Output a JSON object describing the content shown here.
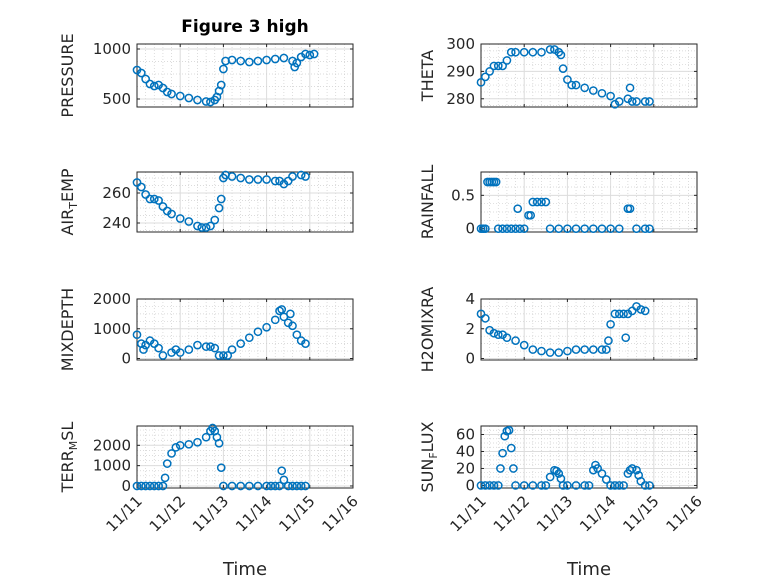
{
  "figure": {
    "title": "Figure 3 high",
    "marker_color": "#0072BD"
  },
  "chart_data": [
    {
      "type": "scatter",
      "ylabel": "PRESSURE",
      "x_tick_labels": [
        "11/11",
        "11/12",
        "11/13",
        "11/14",
        "11/15",
        "11/16"
      ],
      "xlim": [
        0,
        5
      ],
      "ylim": [
        420,
        1050
      ],
      "y_ticks": [
        500,
        1000
      ],
      "y_tick_labels": [
        "500",
        "1000"
      ],
      "grid": true,
      "points": [
        [
          0,
          790
        ],
        [
          0.1,
          760
        ],
        [
          0.2,
          700
        ],
        [
          0.3,
          650
        ],
        [
          0.4,
          630
        ],
        [
          0.5,
          640
        ],
        [
          0.6,
          610
        ],
        [
          0.7,
          570
        ],
        [
          0.8,
          550
        ],
        [
          1.0,
          530
        ],
        [
          1.2,
          510
        ],
        [
          1.4,
          490
        ],
        [
          1.6,
          475
        ],
        [
          1.7,
          470
        ],
        [
          1.8,
          490
        ],
        [
          1.85,
          520
        ],
        [
          1.9,
          580
        ],
        [
          1.95,
          640
        ],
        [
          2.0,
          800
        ],
        [
          2.05,
          880
        ],
        [
          2.2,
          890
        ],
        [
          2.4,
          880
        ],
        [
          2.6,
          870
        ],
        [
          2.8,
          880
        ],
        [
          3.0,
          890
        ],
        [
          3.2,
          900
        ],
        [
          3.4,
          910
        ],
        [
          3.6,
          880
        ],
        [
          3.65,
          820
        ],
        [
          3.7,
          860
        ],
        [
          3.8,
          920
        ],
        [
          3.9,
          950
        ],
        [
          4.0,
          940
        ],
        [
          4.1,
          950
        ]
      ]
    },
    {
      "type": "scatter",
      "ylabel": "THETA",
      "x_tick_labels": [
        "11/11",
        "11/12",
        "11/13",
        "11/14",
        "11/15",
        "11/16"
      ],
      "xlim": [
        0,
        5
      ],
      "ylim": [
        277,
        300
      ],
      "y_ticks": [
        280,
        290,
        300
      ],
      "y_tick_labels": [
        "280",
        "290",
        "300"
      ],
      "grid": true,
      "points": [
        [
          0,
          286
        ],
        [
          0.1,
          288
        ],
        [
          0.2,
          290
        ],
        [
          0.3,
          292
        ],
        [
          0.4,
          292
        ],
        [
          0.5,
          292
        ],
        [
          0.6,
          294
        ],
        [
          0.7,
          297
        ],
        [
          0.8,
          297
        ],
        [
          1.0,
          297
        ],
        [
          1.2,
          297
        ],
        [
          1.4,
          297
        ],
        [
          1.6,
          298
        ],
        [
          1.7,
          298
        ],
        [
          1.8,
          297
        ],
        [
          1.85,
          296
        ],
        [
          1.9,
          291
        ],
        [
          2.0,
          287
        ],
        [
          2.1,
          285
        ],
        [
          2.2,
          285
        ],
        [
          2.4,
          284
        ],
        [
          2.6,
          283
        ],
        [
          2.8,
          282
        ],
        [
          3.0,
          281
        ],
        [
          3.1,
          278
        ],
        [
          3.2,
          279
        ],
        [
          3.4,
          280
        ],
        [
          3.45,
          284
        ],
        [
          3.5,
          279
        ],
        [
          3.6,
          279
        ],
        [
          3.8,
          279
        ],
        [
          3.9,
          279
        ]
      ]
    },
    {
      "type": "scatter",
      "ylabel": "AIR_TEMP",
      "x_tick_labels": [
        "11/11",
        "11/12",
        "11/13",
        "11/14",
        "11/15",
        "11/16"
      ],
      "xlim": [
        0,
        5
      ],
      "ylim": [
        234,
        274
      ],
      "y_ticks": [
        240,
        260
      ],
      "y_tick_labels": [
        "240",
        "260"
      ],
      "grid": true,
      "points": [
        [
          0,
          267
        ],
        [
          0.1,
          264
        ],
        [
          0.2,
          259
        ],
        [
          0.3,
          256
        ],
        [
          0.4,
          256
        ],
        [
          0.5,
          255
        ],
        [
          0.6,
          251
        ],
        [
          0.7,
          248
        ],
        [
          0.8,
          246
        ],
        [
          1.0,
          243
        ],
        [
          1.2,
          241
        ],
        [
          1.4,
          238
        ],
        [
          1.5,
          237
        ],
        [
          1.6,
          237
        ],
        [
          1.7,
          238
        ],
        [
          1.8,
          242
        ],
        [
          1.9,
          250
        ],
        [
          1.95,
          256
        ],
        [
          2.0,
          270
        ],
        [
          2.05,
          272
        ],
        [
          2.2,
          271
        ],
        [
          2.4,
          270
        ],
        [
          2.6,
          269
        ],
        [
          2.8,
          269
        ],
        [
          3.0,
          269
        ],
        [
          3.2,
          268
        ],
        [
          3.3,
          268
        ],
        [
          3.4,
          266
        ],
        [
          3.5,
          268
        ],
        [
          3.6,
          271
        ],
        [
          3.8,
          272
        ],
        [
          3.9,
          271
        ]
      ]
    },
    {
      "type": "scatter",
      "ylabel": "RAINFALL",
      "x_tick_labels": [
        "11/11",
        "11/12",
        "11/13",
        "11/14",
        "11/15",
        "11/16"
      ],
      "xlim": [
        0,
        5
      ],
      "ylim": [
        -0.05,
        0.85
      ],
      "y_ticks": [
        0,
        0.5
      ],
      "y_tick_labels": [
        "0",
        "0.5"
      ],
      "grid": true,
      "points": [
        [
          0,
          0
        ],
        [
          0.05,
          0
        ],
        [
          0.1,
          0
        ],
        [
          0.15,
          0.7
        ],
        [
          0.2,
          0.7
        ],
        [
          0.25,
          0.7
        ],
        [
          0.3,
          0.7
        ],
        [
          0.35,
          0.7
        ],
        [
          0.4,
          0
        ],
        [
          0.5,
          0
        ],
        [
          0.6,
          0
        ],
        [
          0.7,
          0
        ],
        [
          0.8,
          0
        ],
        [
          0.85,
          0.3
        ],
        [
          0.9,
          0
        ],
        [
          1.0,
          0
        ],
        [
          1.1,
          0.2
        ],
        [
          1.15,
          0.2
        ],
        [
          1.2,
          0.4
        ],
        [
          1.3,
          0.4
        ],
        [
          1.4,
          0.4
        ],
        [
          1.5,
          0.4
        ],
        [
          1.6,
          0
        ],
        [
          1.8,
          0
        ],
        [
          2.0,
          0
        ],
        [
          2.2,
          0
        ],
        [
          2.4,
          0
        ],
        [
          2.6,
          0
        ],
        [
          2.8,
          0
        ],
        [
          3.0,
          0
        ],
        [
          3.2,
          0
        ],
        [
          3.4,
          0.3
        ],
        [
          3.45,
          0.3
        ],
        [
          3.6,
          0
        ],
        [
          3.8,
          0
        ],
        [
          3.9,
          0
        ]
      ]
    },
    {
      "type": "scatter",
      "ylabel": "MIXDEPTH",
      "x_tick_labels": [
        "11/11",
        "11/12",
        "11/13",
        "11/14",
        "11/15",
        "11/16"
      ],
      "xlim": [
        0,
        5
      ],
      "ylim": [
        -50,
        2000
      ],
      "y_ticks": [
        0,
        1000,
        2000
      ],
      "y_tick_labels": [
        "0",
        "1000",
        "2000"
      ],
      "grid": true,
      "points": [
        [
          0,
          800
        ],
        [
          0.1,
          500
        ],
        [
          0.15,
          300
        ],
        [
          0.2,
          450
        ],
        [
          0.3,
          600
        ],
        [
          0.4,
          500
        ],
        [
          0.5,
          350
        ],
        [
          0.6,
          100
        ],
        [
          0.8,
          200
        ],
        [
          0.9,
          300
        ],
        [
          1.0,
          200
        ],
        [
          1.2,
          300
        ],
        [
          1.4,
          450
        ],
        [
          1.6,
          400
        ],
        [
          1.7,
          400
        ],
        [
          1.8,
          350
        ],
        [
          1.9,
          100
        ],
        [
          2.0,
          100
        ],
        [
          2.1,
          100
        ],
        [
          2.2,
          300
        ],
        [
          2.4,
          500
        ],
        [
          2.6,
          700
        ],
        [
          2.8,
          900
        ],
        [
          3.0,
          1050
        ],
        [
          3.2,
          1300
        ],
        [
          3.3,
          1600
        ],
        [
          3.35,
          1650
        ],
        [
          3.4,
          1400
        ],
        [
          3.5,
          1200
        ],
        [
          3.55,
          1500
        ],
        [
          3.6,
          1100
        ],
        [
          3.7,
          800
        ],
        [
          3.8,
          600
        ],
        [
          3.9,
          500
        ]
      ]
    },
    {
      "type": "scatter",
      "ylabel": "H2OMIXRA",
      "x_tick_labels": [
        "11/11",
        "11/12",
        "11/13",
        "11/14",
        "11/15",
        "11/16"
      ],
      "xlim": [
        0,
        5
      ],
      "ylim": [
        -0.1,
        4
      ],
      "y_ticks": [
        0,
        2,
        4
      ],
      "y_tick_labels": [
        "0",
        "2",
        "4"
      ],
      "grid": true,
      "points": [
        [
          0,
          3
        ],
        [
          0.1,
          2.7
        ],
        [
          0.2,
          1.9
        ],
        [
          0.3,
          1.7
        ],
        [
          0.4,
          1.6
        ],
        [
          0.5,
          1.6
        ],
        [
          0.6,
          1.4
        ],
        [
          0.8,
          1.2
        ],
        [
          1.0,
          0.9
        ],
        [
          1.2,
          0.6
        ],
        [
          1.4,
          0.5
        ],
        [
          1.6,
          0.4
        ],
        [
          1.8,
          0.4
        ],
        [
          2.0,
          0.5
        ],
        [
          2.2,
          0.6
        ],
        [
          2.4,
          0.6
        ],
        [
          2.6,
          0.6
        ],
        [
          2.8,
          0.6
        ],
        [
          2.9,
          0.6
        ],
        [
          2.95,
          1.2
        ],
        [
          3.0,
          2.3
        ],
        [
          3.1,
          3
        ],
        [
          3.2,
          3
        ],
        [
          3.3,
          3
        ],
        [
          3.35,
          1.4
        ],
        [
          3.4,
          3
        ],
        [
          3.5,
          3.2
        ],
        [
          3.6,
          3.5
        ],
        [
          3.7,
          3.3
        ],
        [
          3.8,
          3.2
        ]
      ]
    },
    {
      "type": "scatter",
      "ylabel": "TERR_MSL",
      "x_tick_labels": [
        "11/11",
        "11/12",
        "11/13",
        "11/14",
        "11/15",
        "11/16"
      ],
      "xlim": [
        0,
        5
      ],
      "ylim": [
        -100,
        2950
      ],
      "y_ticks": [
        0,
        1000,
        2000
      ],
      "y_tick_labels": [
        "0",
        "1000",
        "2000"
      ],
      "grid": true,
      "points": [
        [
          0,
          0
        ],
        [
          0.1,
          0
        ],
        [
          0.2,
          0
        ],
        [
          0.3,
          0
        ],
        [
          0.4,
          0
        ],
        [
          0.5,
          0
        ],
        [
          0.6,
          0
        ],
        [
          0.65,
          400
        ],
        [
          0.7,
          1100
        ],
        [
          0.8,
          1600
        ],
        [
          0.9,
          1900
        ],
        [
          1.0,
          2000
        ],
        [
          1.2,
          2050
        ],
        [
          1.4,
          2150
        ],
        [
          1.6,
          2400
        ],
        [
          1.7,
          2700
        ],
        [
          1.75,
          2850
        ],
        [
          1.8,
          2700
        ],
        [
          1.85,
          2400
        ],
        [
          1.9,
          2100
        ],
        [
          1.95,
          900
        ],
        [
          2.0,
          0
        ],
        [
          2.2,
          0
        ],
        [
          2.4,
          0
        ],
        [
          2.6,
          0
        ],
        [
          2.8,
          0
        ],
        [
          3.0,
          0
        ],
        [
          3.1,
          0
        ],
        [
          3.2,
          0
        ],
        [
          3.3,
          0
        ],
        [
          3.35,
          750
        ],
        [
          3.4,
          300
        ],
        [
          3.5,
          0
        ],
        [
          3.6,
          0
        ],
        [
          3.7,
          0
        ],
        [
          3.8,
          0
        ],
        [
          3.9,
          0
        ]
      ]
    },
    {
      "type": "scatter",
      "ylabel": "SUN_FLUX",
      "x_tick_labels": [
        "11/11",
        "11/12",
        "11/13",
        "11/14",
        "11/15",
        "11/16"
      ],
      "xlim": [
        0,
        5
      ],
      "ylim": [
        -3,
        70
      ],
      "y_ticks": [
        0,
        20,
        40,
        60
      ],
      "y_tick_labels": [
        "0",
        "20",
        "40",
        "60"
      ],
      "grid": true,
      "points": [
        [
          0,
          0
        ],
        [
          0.1,
          0
        ],
        [
          0.2,
          0
        ],
        [
          0.3,
          0
        ],
        [
          0.4,
          0
        ],
        [
          0.45,
          20
        ],
        [
          0.5,
          38
        ],
        [
          0.55,
          58
        ],
        [
          0.6,
          64
        ],
        [
          0.65,
          65
        ],
        [
          0.7,
          44
        ],
        [
          0.75,
          20
        ],
        [
          0.8,
          0
        ],
        [
          1.0,
          0
        ],
        [
          1.2,
          0
        ],
        [
          1.4,
          0
        ],
        [
          1.5,
          0
        ],
        [
          1.6,
          10
        ],
        [
          1.7,
          18
        ],
        [
          1.75,
          17
        ],
        [
          1.8,
          14
        ],
        [
          1.85,
          8
        ],
        [
          1.9,
          0
        ],
        [
          2.0,
          0
        ],
        [
          2.2,
          0
        ],
        [
          2.4,
          0
        ],
        [
          2.5,
          0
        ],
        [
          2.6,
          18
        ],
        [
          2.65,
          24
        ],
        [
          2.7,
          20
        ],
        [
          2.8,
          14
        ],
        [
          2.9,
          7
        ],
        [
          3.0,
          0
        ],
        [
          3.1,
          0
        ],
        [
          3.2,
          0
        ],
        [
          3.3,
          0
        ],
        [
          3.4,
          14
        ],
        [
          3.45,
          18
        ],
        [
          3.5,
          20
        ],
        [
          3.6,
          18
        ],
        [
          3.65,
          12
        ],
        [
          3.7,
          5
        ],
        [
          3.8,
          0
        ],
        [
          3.9,
          0
        ]
      ]
    }
  ],
  "x_axis_label": "Time"
}
